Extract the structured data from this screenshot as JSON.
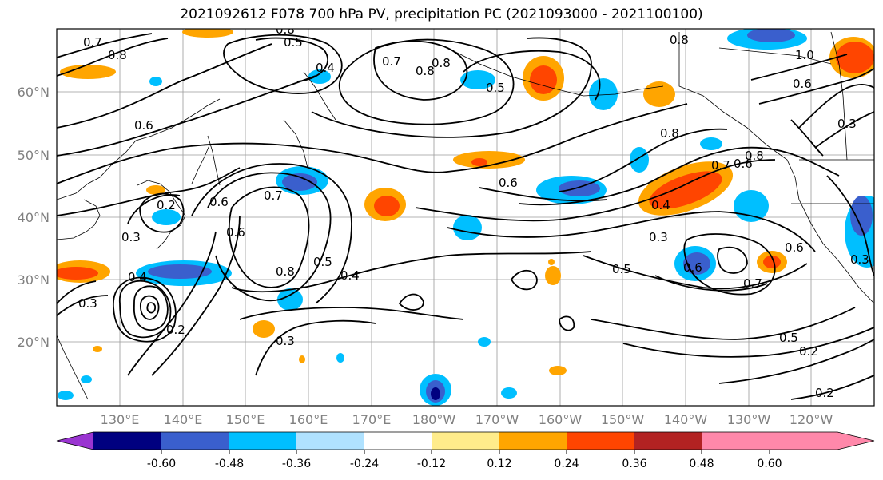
{
  "title": "2021092612 F078 700 hPa PV, precipitation PC (2021093000 - 2021100100)",
  "map": {
    "lat_labels": [
      "60°N",
      "50°N",
      "40°N",
      "30°N",
      "20°N"
    ],
    "lon_labels": [
      "130°E",
      "140°E",
      "150°E",
      "160°E",
      "170°E",
      "180°W",
      "170°W",
      "160°W",
      "150°W",
      "140°W",
      "130°W",
      "120°W"
    ]
  },
  "contour_labels": [
    "0.7",
    "0.8",
    "0.8",
    "0.5",
    "0.4",
    "0.7",
    "0.8",
    "0.5",
    "0.8",
    "0.8",
    "1.0",
    "0.6",
    "0.6",
    "0.3",
    "0.6",
    "0.7",
    "0.6",
    "0.8",
    "0.8",
    "0.7",
    "0.8",
    "0.4",
    "0.3",
    "0.6",
    "0.6",
    "0.6",
    "0.5",
    "0.4",
    "0.3",
    "0.2",
    "0.4",
    "0.3",
    "0.2",
    "0.3",
    "0.5",
    "0.7",
    "0.6",
    "0.5",
    "0.2",
    "0.2",
    "0.3"
  ],
  "colorbar": {
    "tick_labels": [
      "-0.60",
      "-0.48",
      "-0.36",
      "-0.24",
      "-0.12",
      "0.12",
      "0.24",
      "0.36",
      "0.48",
      "0.60"
    ],
    "colors": [
      "#9a35d1",
      "#000080",
      "#3a5fcd",
      "#00bfff",
      "#b0e2ff",
      "#ffffff",
      "#ffec8b",
      "#ffa500",
      "#ff4500",
      "#b22222",
      "#ff88aa"
    ]
  }
}
